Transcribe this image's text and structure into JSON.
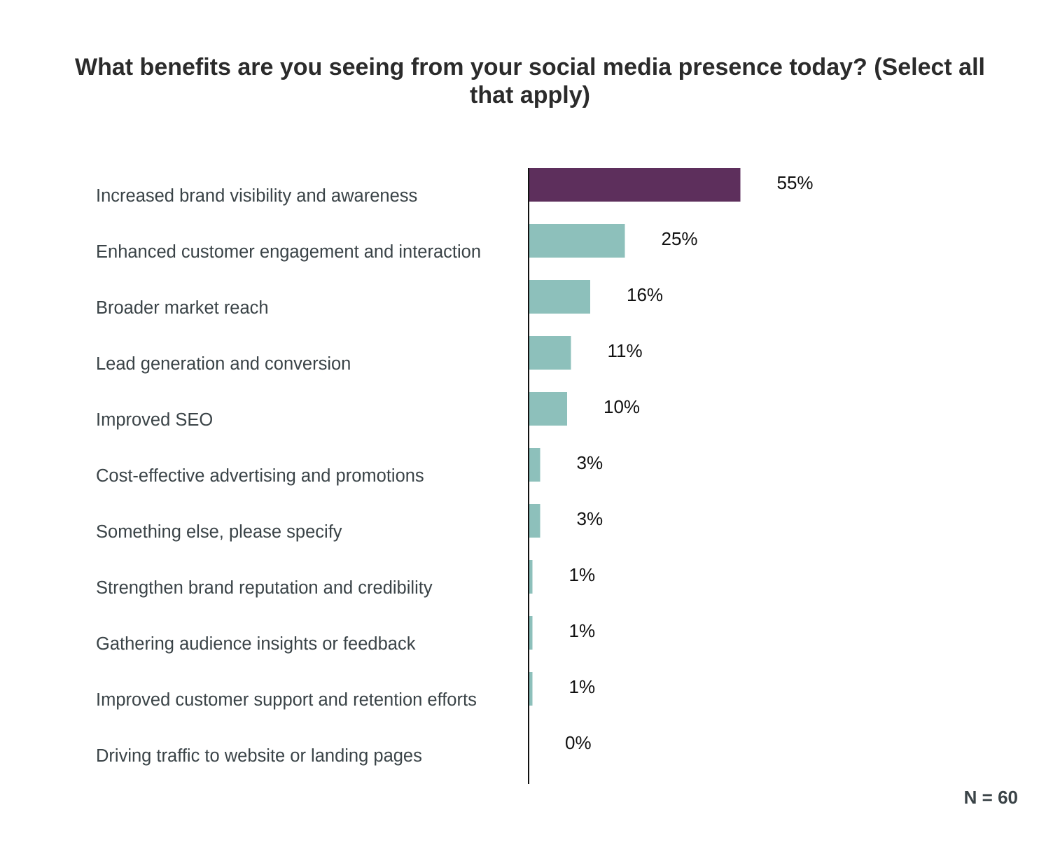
{
  "chart_data": {
    "type": "bar",
    "orientation": "horizontal",
    "title": "What benefits are you seeing from your social media presence today? (Select all that apply)",
    "categories": [
      "Increased brand visibility and awareness",
      "Enhanced customer engagement and interaction",
      "Broader market reach",
      "Lead generation and conversion",
      "Improved SEO",
      "Cost-effective advertising and promotions",
      "Something else, please specify",
      "Strengthen brand reputation and credibility",
      "Gathering audience insights or feedback",
      "Improved customer support and retention efforts",
      "Driving traffic to website or landing pages"
    ],
    "values": [
      55,
      25,
      16,
      11,
      10,
      3,
      3,
      1,
      1,
      1,
      0
    ],
    "value_labels": [
      "55%",
      "25%",
      "16%",
      "11%",
      "10%",
      "3%",
      "3%",
      "1%",
      "1%",
      "1%",
      "0%"
    ],
    "unit": "%",
    "colors": {
      "highlight": "#5d2f5c",
      "default": "#8dc0bb",
      "axis": "#111111"
    },
    "grid": false,
    "legend": "none",
    "note": "N = 60"
  }
}
